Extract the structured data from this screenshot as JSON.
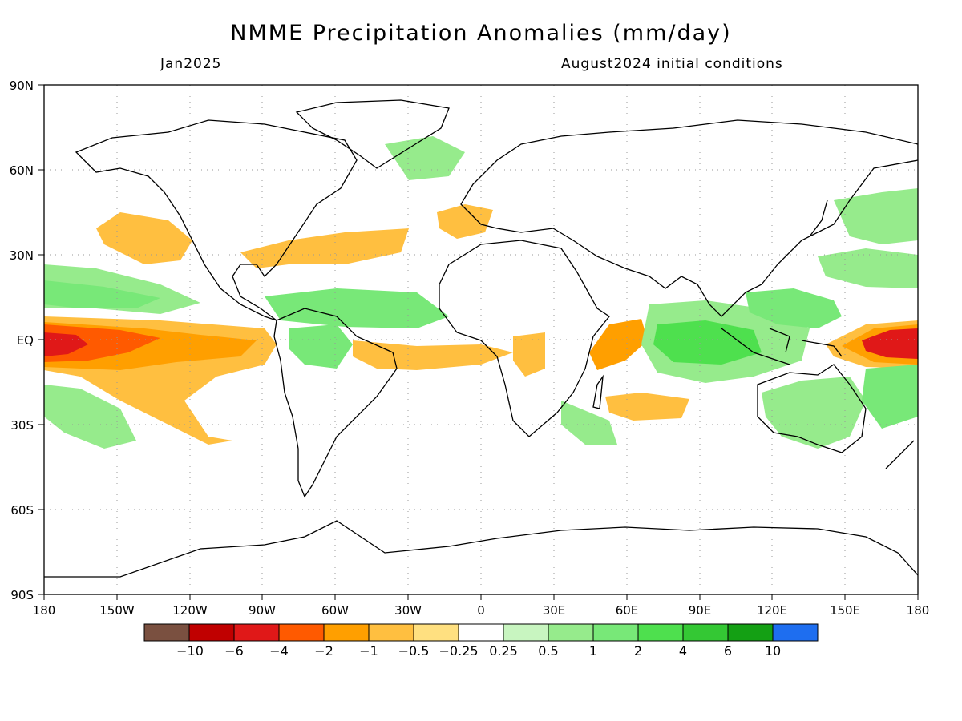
{
  "title": "NMME Precipitation Anomalies (mm/day)",
  "valid_month": "Jan2025",
  "initial_conditions": "August2024 initial conditions",
  "map": {
    "projection": "equirectangular",
    "lat_labels": [
      "90N",
      "60N",
      "30N",
      "EQ",
      "30S",
      "60S",
      "90S"
    ],
    "lon_labels": [
      "180",
      "150W",
      "120W",
      "90W",
      "60W",
      "30W",
      "0",
      "30E",
      "60E",
      "90E",
      "120E",
      "150E",
      "180"
    ],
    "grid": "dotted"
  },
  "colorbar": {
    "colors": [
      "#7a5040",
      "#c00000",
      "#e01818",
      "#ff5a00",
      "#ff9f00",
      "#ffbf40",
      "#ffe080",
      "#ffffff",
      "#c8f5c0",
      "#96eb8c",
      "#78e878",
      "#4ee04e",
      "#34c834",
      "#14a014",
      "#1e6ef0"
    ],
    "labels": [
      "−10",
      "−6",
      "−4",
      "−2",
      "−1",
      "−0.5",
      "−0.25",
      "0.25",
      "0.5",
      "1",
      "2",
      "4",
      "6",
      "10"
    ]
  },
  "colors": {
    "coastline": "#000000",
    "grid": "#999999"
  }
}
